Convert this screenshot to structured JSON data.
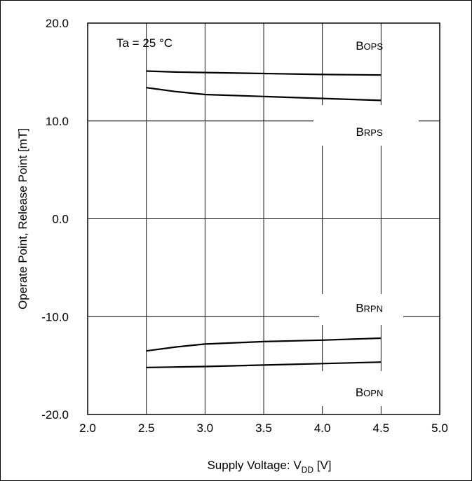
{
  "chart_data": {
    "type": "line",
    "title": "",
    "xlabel": "Supply Voltage: V",
    "xlabel_sub": "DD",
    "xlabel_unit": " [V]",
    "ylabel": "Operate Point, Release Point [mT]",
    "xlim": [
      2.0,
      5.0
    ],
    "ylim": [
      -20.0,
      20.0
    ],
    "x_ticks": [
      "2.0",
      "2.5",
      "3.0",
      "3.5",
      "4.0",
      "4.5",
      "5.0"
    ],
    "y_ticks": [
      "20.0",
      "10.0",
      "0.0",
      "-10.0",
      "-20.0"
    ],
    "grid": true,
    "annotation": "Ta = 25 °C",
    "series": [
      {
        "name": "B",
        "sub": "OPS",
        "x": [
          2.5,
          2.75,
          3.0,
          3.5,
          4.0,
          4.5
        ],
        "y": [
          15.1,
          15.0,
          14.95,
          14.85,
          14.75,
          14.7
        ]
      },
      {
        "name": "B",
        "sub": "RPS",
        "x": [
          2.5,
          2.75,
          3.0,
          3.5,
          4.0,
          4.5
        ],
        "y": [
          13.4,
          13.0,
          12.7,
          12.5,
          12.3,
          12.1
        ]
      },
      {
        "name": "B",
        "sub": "RPN",
        "x": [
          2.5,
          2.75,
          3.0,
          3.5,
          4.0,
          4.5
        ],
        "y": [
          -13.5,
          -13.1,
          -12.8,
          -12.55,
          -12.4,
          -12.2
        ]
      },
      {
        "name": "B",
        "sub": "OPN",
        "x": [
          2.5,
          2.75,
          3.0,
          3.5,
          4.0,
          4.5
        ],
        "y": [
          -15.2,
          -15.15,
          -15.1,
          -14.95,
          -14.8,
          -14.65
        ]
      }
    ]
  }
}
